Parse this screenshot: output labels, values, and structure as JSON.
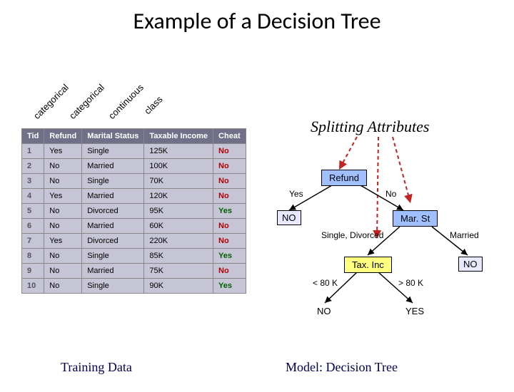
{
  "title": "Example of a Decision Tree",
  "diag_labels": [
    "categorical",
    "categorical",
    "continuous",
    "class"
  ],
  "table": {
    "headers": [
      "Tid",
      "Refund",
      "Marital Status",
      "Taxable Income",
      "Cheat"
    ],
    "rows": [
      [
        "1",
        "Yes",
        "Single",
        "125K",
        "No"
      ],
      [
        "2",
        "No",
        "Married",
        "100K",
        "No"
      ],
      [
        "3",
        "No",
        "Single",
        "70K",
        "No"
      ],
      [
        "4",
        "Yes",
        "Married",
        "120K",
        "No"
      ],
      [
        "5",
        "No",
        "Divorced",
        "95K",
        "Yes"
      ],
      [
        "6",
        "No",
        "Married",
        "60K",
        "No"
      ],
      [
        "7",
        "Yes",
        "Divorced",
        "220K",
        "No"
      ],
      [
        "8",
        "No",
        "Single",
        "85K",
        "Yes"
      ],
      [
        "9",
        "No",
        "Married",
        "75K",
        "No"
      ],
      [
        "10",
        "No",
        "Single",
        "90K",
        "Yes"
      ]
    ]
  },
  "splitting_label": "Splitting Attributes",
  "tree": {
    "refund": "Refund",
    "marst": "Mar. St",
    "taxinc": "Tax. Inc",
    "yes": "Yes",
    "no_branch": "No",
    "sd": "Single, Divorced",
    "married": "Married",
    "lt80": "< 80 K",
    "gt80": "> 80 K",
    "leaf_no": "NO",
    "leaf_yes": "YES"
  },
  "bottom": {
    "training": "Training Data",
    "model": "Model:  Decision Tree"
  },
  "colors": {
    "node_blue": "#9fbfff",
    "node_yellow": "#ffff80",
    "dashed_arrow": "#c22222"
  }
}
